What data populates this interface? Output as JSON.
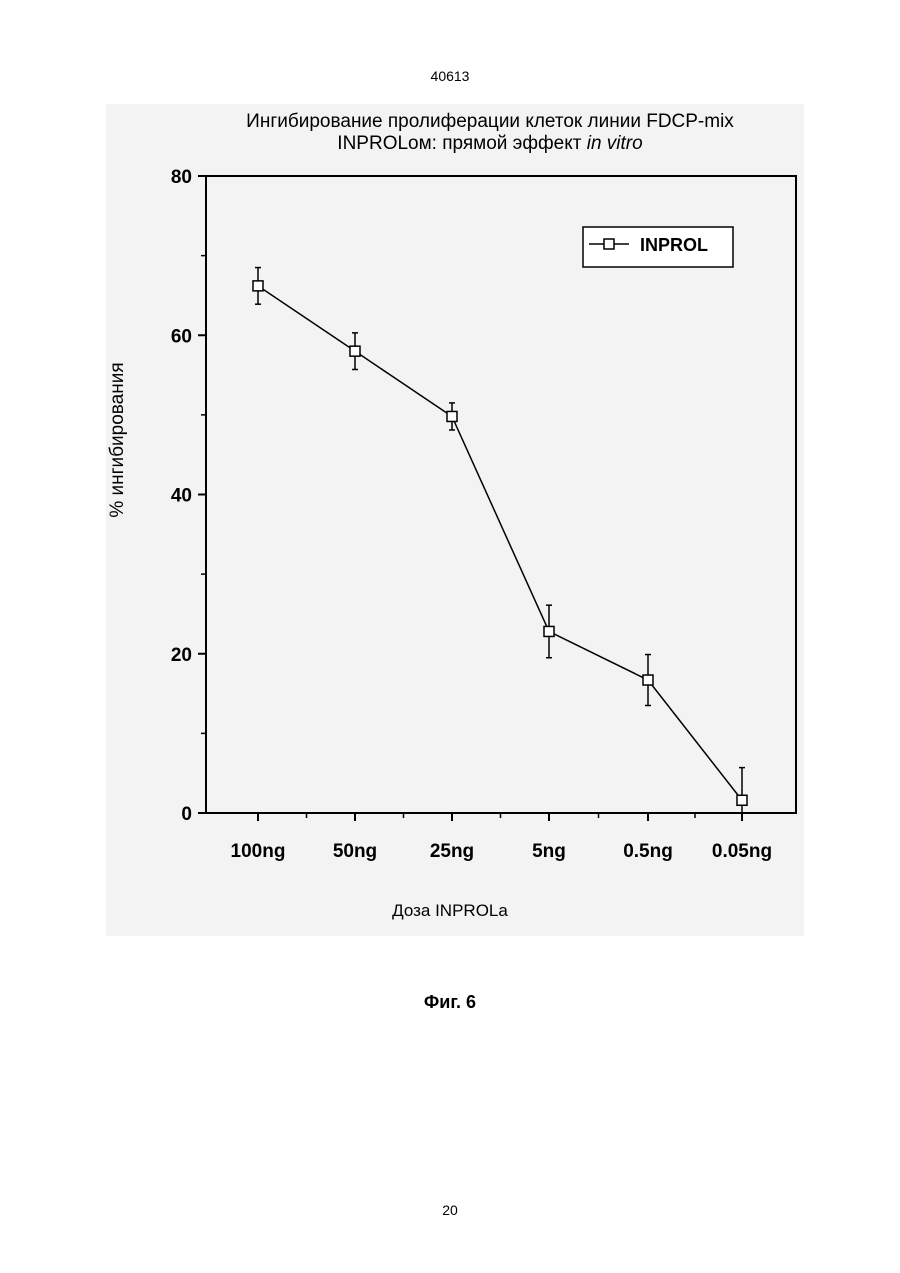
{
  "page": {
    "doc_number": "40613",
    "page_number": "20",
    "figure_caption": "Фиг. 6"
  },
  "chart_data": {
    "type": "line",
    "title_line1": "Ингибирование пролиферации клеток линии FDCP-mix",
    "title_line2_prefix": "INPROLом: прямой эффект ",
    "title_line2_italic": "in vitro",
    "xlabel": "Доза INPROLa",
    "ylabel": "% ингибирования",
    "categories": [
      "100ng",
      "50ng",
      "25ng",
      "5ng",
      "0.5ng",
      "0.05ng"
    ],
    "ylim": [
      0,
      80
    ],
    "yticks": [
      0,
      20,
      40,
      60,
      80
    ],
    "yticks_minor": [
      10,
      30,
      50,
      70
    ],
    "legend_position": "top-right",
    "grid": false,
    "series": [
      {
        "name": "INPROL",
        "marker": "open-square",
        "values": [
          66.2,
          58.0,
          49.8,
          22.8,
          16.7,
          1.6
        ],
        "errors": [
          2.3,
          2.3,
          1.7,
          3.3,
          3.2,
          4.1
        ]
      }
    ]
  }
}
